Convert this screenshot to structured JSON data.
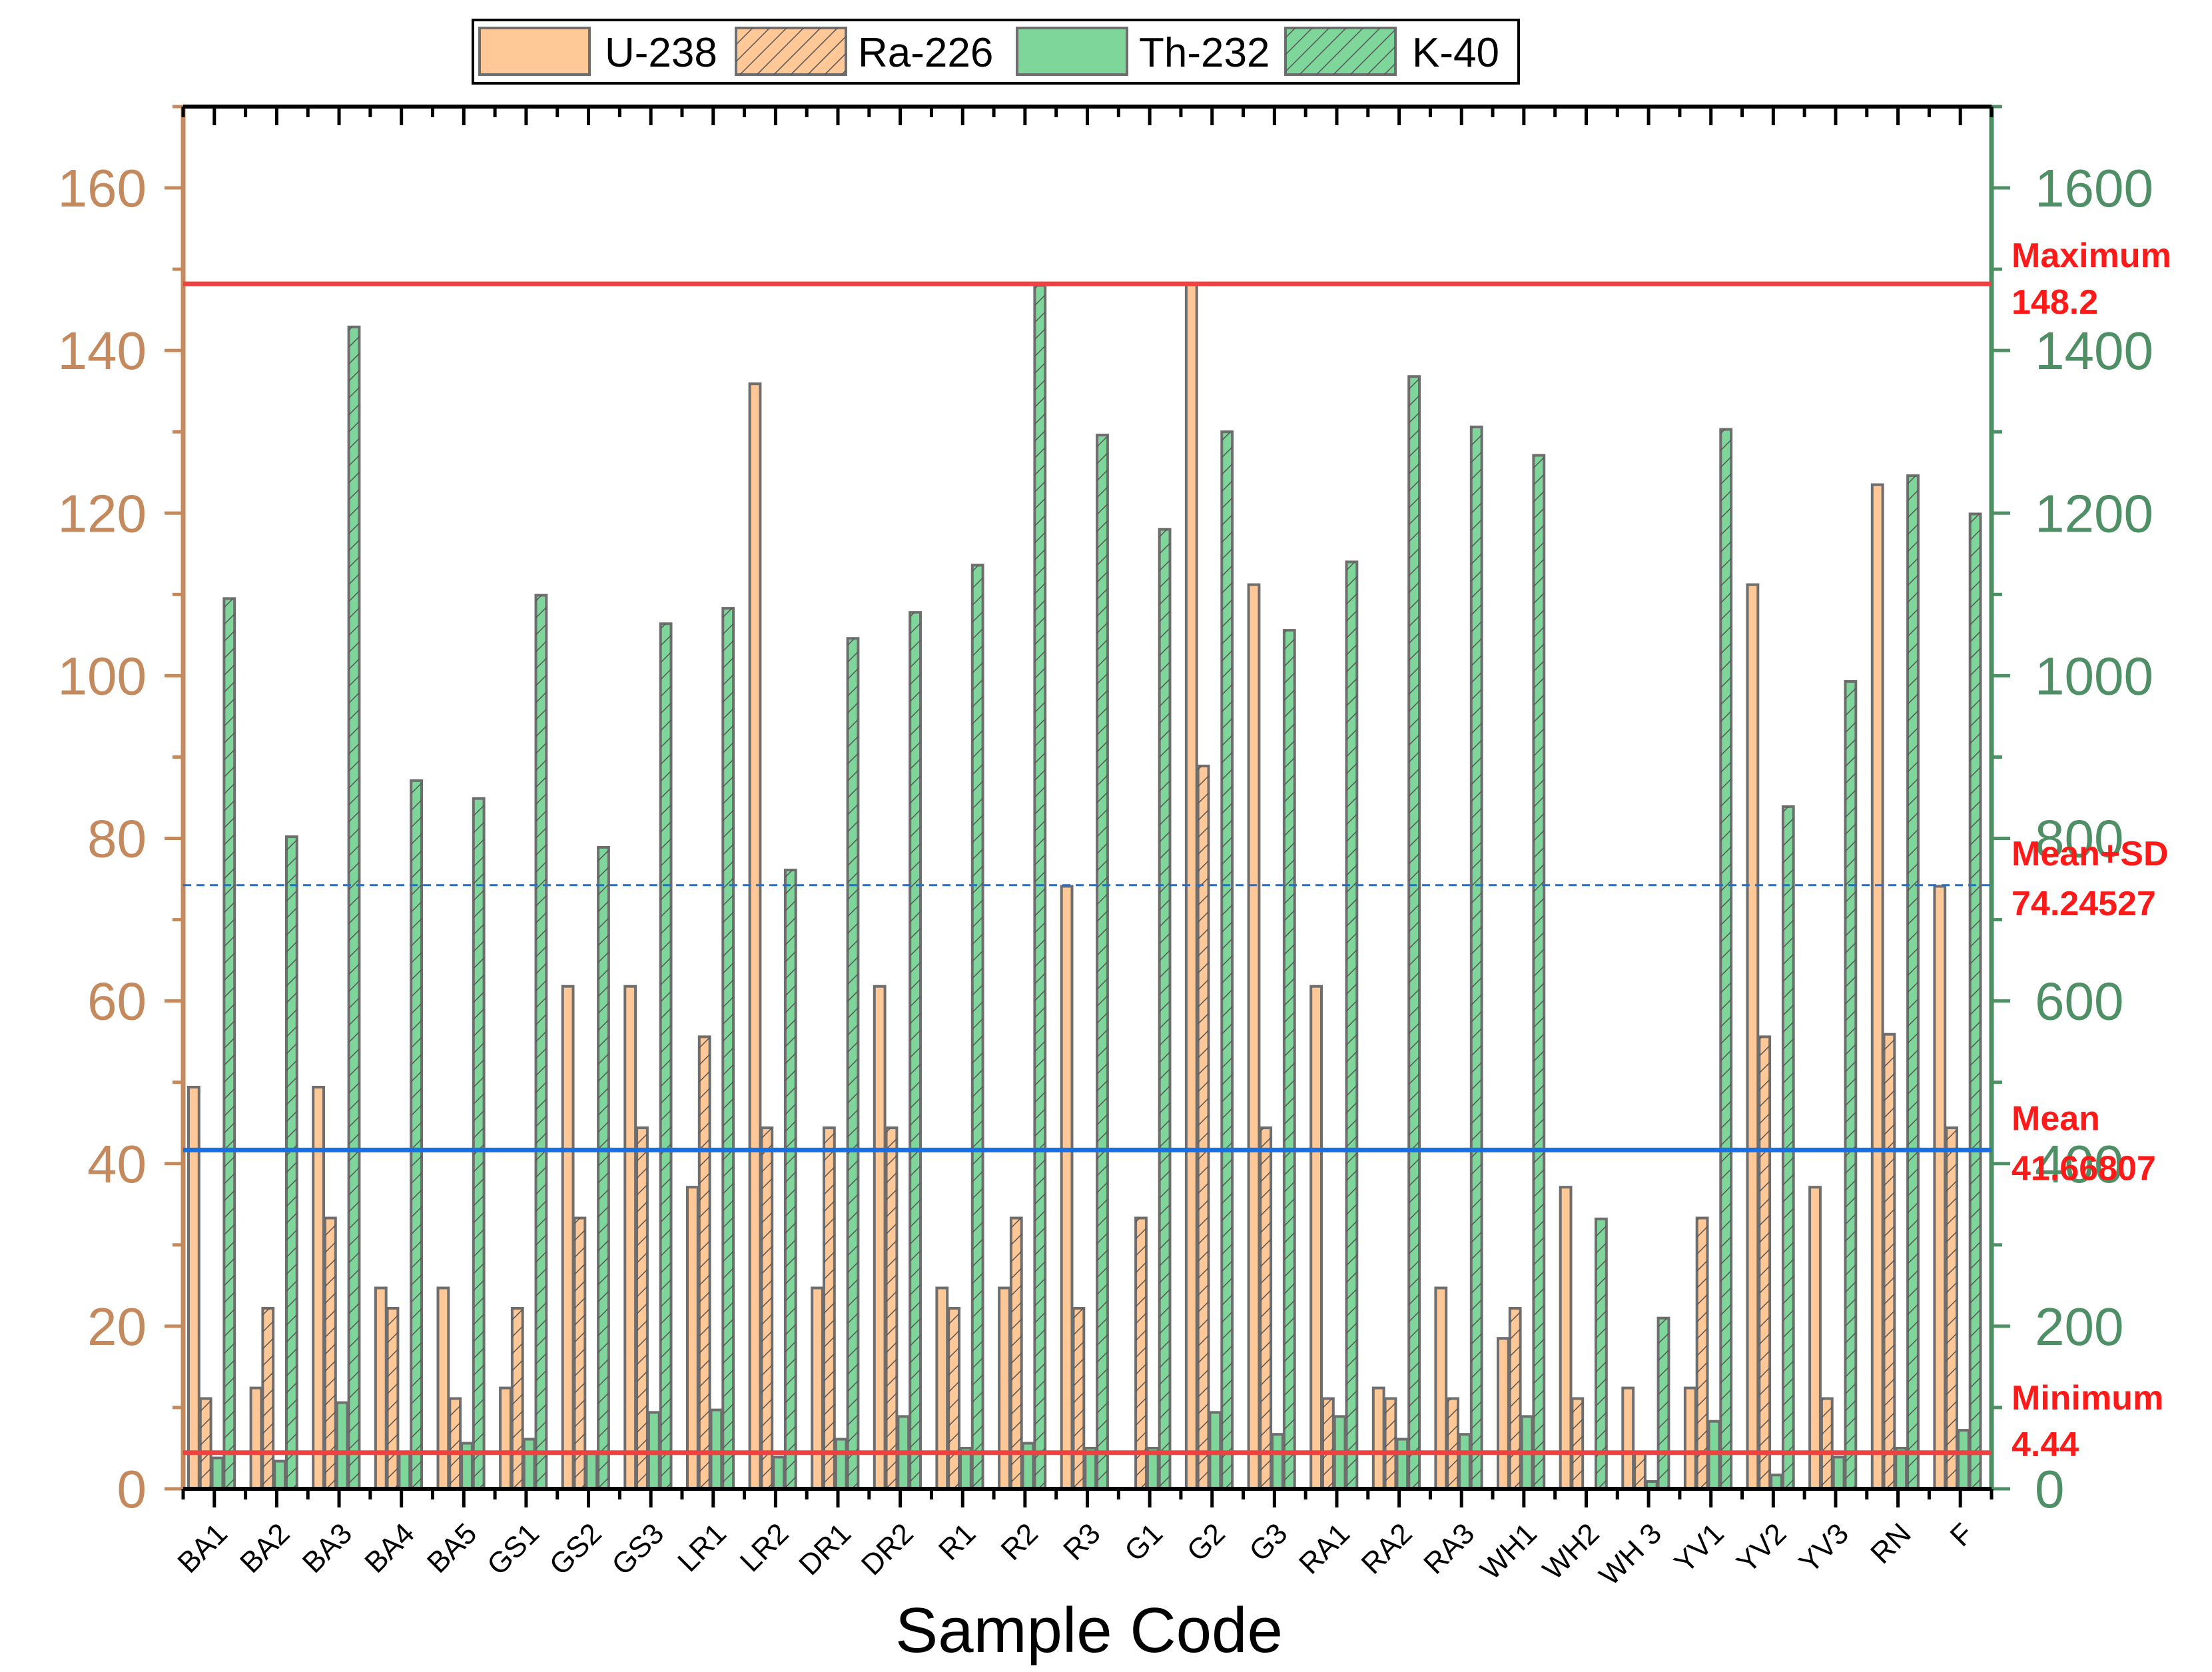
{
  "colors": {
    "u238": "#FFC896",
    "ra226": "#FFC896",
    "th232": "#7ED69B",
    "k40": "#7ED69B",
    "bar_stroke": "#6E6E6E",
    "left_axis": "#C48A5E",
    "right_axis": "#4E8F66",
    "ref_red": "#F04040",
    "ref_blue": "#1A6FE0",
    "ref_text": "#FF1A1A"
  },
  "chart_data": {
    "type": "bar",
    "title": "",
    "xlabel": "Sample Code",
    "ylabel": "",
    "y2label": "",
    "ylim": [
      0,
      170
    ],
    "y2lim": [
      0,
      1700
    ],
    "yticks": [
      "0",
      "20",
      "40",
      "60",
      "80",
      "100",
      "120",
      "140",
      "160"
    ],
    "y2ticks": [
      "0",
      "200",
      "400",
      "600",
      "800",
      "1000",
      "1200",
      "1400",
      "1600"
    ],
    "categories": [
      "BA1",
      "BA2",
      "BA3",
      "BA4",
      "BA5",
      "GS1",
      "GS2",
      "GS3",
      "LR1",
      "LR2",
      "DR1",
      "DR2",
      "R1",
      "R2",
      "R3",
      "G1",
      "G2",
      "G3",
      "RA1",
      "RA2",
      "RA3",
      "WH1",
      "WH2",
      "WH 3",
      "YV1",
      "YV2",
      "YV3",
      "RN",
      "F"
    ],
    "series": [
      {
        "name": "U-238",
        "axis": "left",
        "hatch": false,
        "color_key": "u238",
        "values": [
          49.4,
          12.4,
          49.4,
          24.7,
          24.7,
          12.4,
          61.8,
          61.8,
          37.1,
          135.9,
          24.7,
          61.8,
          24.7,
          24.7,
          74.1,
          0,
          148.2,
          111.2,
          61.8,
          12.4,
          24.7,
          18.5,
          37.1,
          12.4,
          12.4,
          111.2,
          37.1,
          123.5,
          74.1
        ]
      },
      {
        "name": "Ra-226",
        "axis": "left",
        "hatch": true,
        "color_key": "ra226",
        "values": [
          11.1,
          22.2,
          33.3,
          22.2,
          11.1,
          22.2,
          33.3,
          44.4,
          55.6,
          44.4,
          44.4,
          44.4,
          22.2,
          33.3,
          22.2,
          33.3,
          88.9,
          44.4,
          11.1,
          11.1,
          11.1,
          22.2,
          11.1,
          4.4,
          33.3,
          55.6,
          11.1,
          55.9,
          44.4
        ]
      },
      {
        "name": "Th-232",
        "axis": "left",
        "hatch": false,
        "color_key": "th232",
        "values": [
          3.8,
          3.4,
          10.6,
          4.4,
          5.6,
          6.1,
          4.4,
          9.4,
          9.7,
          3.9,
          6.1,
          8.9,
          5.0,
          5.6,
          5.0,
          5.0,
          9.4,
          6.7,
          8.9,
          6.1,
          6.7,
          8.9,
          0,
          0.9,
          8.3,
          1.7,
          3.9,
          5.0,
          7.2
        ]
      },
      {
        "name": "K-40",
        "axis": "right",
        "hatch": true,
        "color_key": "k40",
        "values": [
          1095,
          802,
          1429,
          871,
          849,
          1099,
          789,
          1064,
          1083,
          761,
          1046,
          1078,
          1136,
          1480,
          1296,
          1180,
          1300,
          1056,
          1140,
          1368,
          1306,
          1271,
          332,
          210,
          1303,
          839,
          993,
          1246,
          1199
        ]
      }
    ],
    "reference_lines": [
      {
        "key": "maximum",
        "name": "Maximum",
        "value_label": "148.2",
        "value": 148.2,
        "style": "solid",
        "color_key": "ref_red"
      },
      {
        "key": "mean_sd",
        "name": "Mean+SD",
        "value_label": "74.24527",
        "value": 74.24527,
        "style": "dashed",
        "color_key": "ref_blue"
      },
      {
        "key": "mean",
        "name": "Mean",
        "value_label": "41.66807",
        "value": 41.66807,
        "style": "solid",
        "color_key": "ref_blue"
      },
      {
        "key": "minimum",
        "name": "Minimum",
        "value_label": "4.44",
        "value": 4.44,
        "style": "solid",
        "color_key": "ref_red"
      }
    ],
    "legend": {
      "position": "top-center",
      "entries": [
        "U-238",
        "Ra-226",
        "Th-232",
        "K-40"
      ]
    }
  }
}
